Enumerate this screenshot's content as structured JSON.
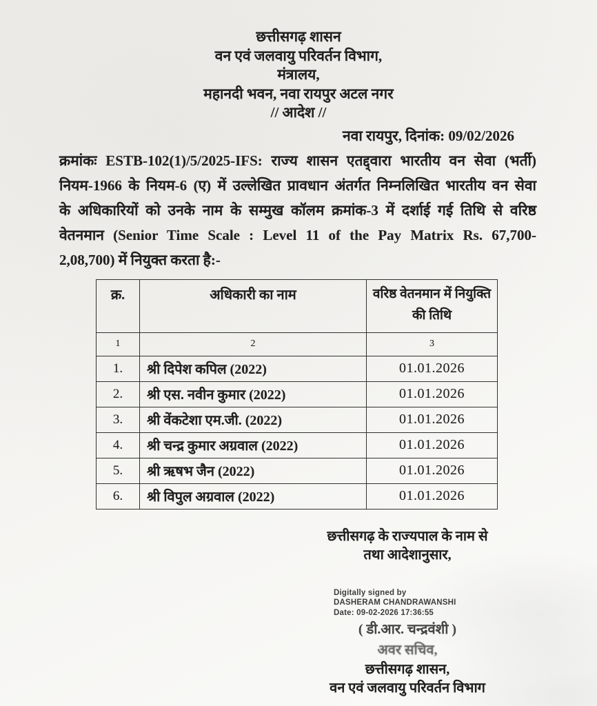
{
  "colors": {
    "paper": "#f3f2ee",
    "ink": "#1f1f1f",
    "table_border": "#30302e",
    "stamp_text": "#3d3d3d"
  },
  "header": {
    "government": "छत्तीसगढ़ शासन",
    "department": "वन एवं जलवायु परिवर्तन विभाग,",
    "ministry": "मंत्रालय,",
    "address": "महानदी भवन, नवा रायपुर अटल नगर",
    "order_heading": "// आदेश //",
    "place_date": "नवा रायपुर, दिनांक: 09/02/2026"
  },
  "body": {
    "lines": [
      "क्रमांकः ESTB-102(1)/5/2025-IFS: राज्य शासन एतद्द्वारा भारतीय वन सेवा (भर्ती)",
      "नियम-1966 के नियम-6 (ए) में उल्लेखित प्रावधान अंतर्गत निम्नलिखित भारतीय वन सेवा",
      "के अधिकारियों को उनके नाम के सम्मुख कॉलम क्रमांक-3 में दर्शाई गई तिथि से वरिष्ठ",
      "वेतनमान (Senior Time Scale : Level 11 of the Pay Matrix Rs. 67,700-",
      "2,08,700) में नियुक्त करता है:-"
    ]
  },
  "table": {
    "headers": {
      "sno": "क्र.",
      "name": "अधिकारी का नाम",
      "date": "वरिष्ठ वेतनमान में नियुक्ति की तिथि"
    },
    "col_numbers": {
      "c1": "1",
      "c2": "2",
      "c3": "3"
    },
    "rows": [
      {
        "sno": "1.",
        "name": "श्री दिपेश कपिल (2022)",
        "date": "01.01.2026"
      },
      {
        "sno": "2.",
        "name": "श्री एस. नवीन कुमार (2022)",
        "date": "01.01.2026"
      },
      {
        "sno": "3.",
        "name": "श्री वेंकटेशा एम.जी. (2022)",
        "date": "01.01.2026"
      },
      {
        "sno": "4.",
        "name": "श्री चन्द्र कुमार अग्रवाल (2022)",
        "date": "01.01.2026"
      },
      {
        "sno": "5.",
        "name": "श्री ऋषभ जैन (2022)",
        "date": "01.01.2026"
      },
      {
        "sno": "6.",
        "name": "श्री विपुल अग्रवाल (2022)",
        "date": "01.01.2026"
      }
    ]
  },
  "signature": {
    "authority_line1": "छत्तीसगढ़ के राज्यपाल के नाम से",
    "authority_line2": "तथा आदेशानुसार,",
    "digital_stamp": {
      "line1": "Digitally signed by",
      "line2": "DASHERAM CHANDRAWANSHI",
      "line3": "Date: 09-02-2026 17:36:55"
    },
    "signer_name": "( डी.आर. चन्द्रवंशी )",
    "designation": "अवर सचिव,",
    "organization": "छत्तीसगढ़ शासन,",
    "department": "वन एवं जलवायु परिवर्तन विभाग"
  }
}
